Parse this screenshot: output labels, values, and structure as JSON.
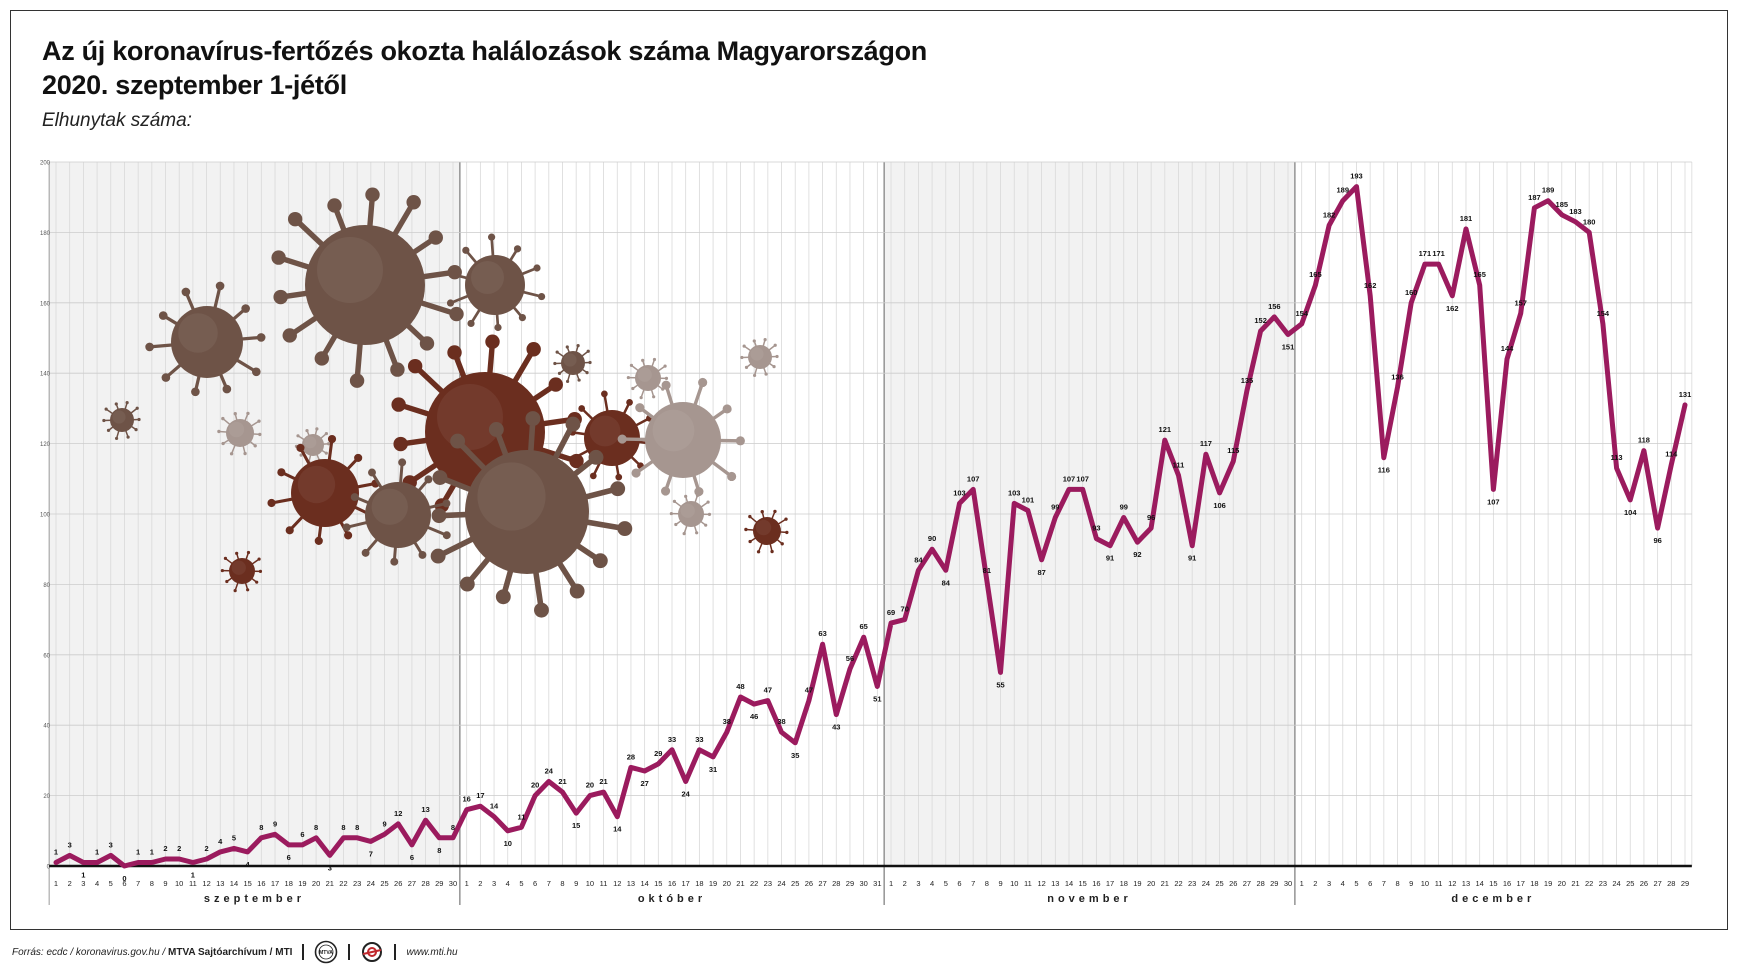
{
  "title_line1": "Az új koronavírus-fertőzés okozta halálozások száma Magyarországon",
  "title_line2": "2020. szeptember 1-jétől",
  "subtitle": "Elhunytak száma:",
  "footer": {
    "source_prefix": "Forrás: ecdc / koronavirus.gov.hu / ",
    "source_bold": "MTVA Sajtóarchívum / MTI",
    "url": "www.mti.hu",
    "logo1_text": "MTVA"
  },
  "colors": {
    "line": "#9b1b5e",
    "text": "#111111",
    "virus_dark": "#6b2e1f",
    "virus_mid": "#6e5347",
    "virus_light": "#a69690"
  },
  "chart_data": {
    "type": "line",
    "ylim": [
      0,
      200
    ],
    "yticks": [
      0,
      20,
      40,
      60,
      80,
      100,
      120,
      140,
      160,
      180,
      200
    ],
    "grid": true,
    "months": [
      {
        "name": "szeptember",
        "days": 30
      },
      {
        "name": "október",
        "days": 31
      },
      {
        "name": "november",
        "days": 30
      },
      {
        "name": "december",
        "days": 29
      }
    ],
    "series": [
      {
        "values": [
          1,
          3,
          1,
          1,
          3,
          0,
          1,
          1,
          2,
          2,
          1,
          2,
          4,
          5,
          4,
          8,
          9,
          6,
          6,
          8,
          3,
          8,
          8,
          7,
          9,
          12,
          6,
          13,
          8,
          8,
          16,
          17,
          14,
          10,
          11,
          20,
          24,
          21,
          15,
          20,
          21,
          14,
          28,
          27,
          29,
          33,
          24,
          33,
          31,
          38,
          48,
          46,
          47,
          38,
          35,
          47,
          63,
          43,
          56,
          65,
          51,
          69,
          70,
          84,
          90,
          84,
          103,
          107,
          81,
          55,
          103,
          101,
          87,
          99,
          107,
          107,
          93,
          91,
          99,
          92,
          96,
          121,
          111,
          91,
          117,
          106,
          115,
          135,
          152,
          156,
          151,
          154,
          165,
          182,
          189,
          193,
          162,
          116,
          136,
          160,
          171,
          171,
          162,
          181,
          165,
          107,
          144,
          157,
          187,
          189,
          185,
          183,
          180,
          154,
          113,
          104,
          118,
          96,
          114,
          131
        ]
      }
    ]
  },
  "viruses": [
    {
      "name": "virus-1",
      "color": "virus_mid"
    },
    {
      "name": "virus-2",
      "color": "virus_mid"
    },
    {
      "name": "virus-3",
      "color": "virus_mid"
    },
    {
      "name": "virus-4",
      "color": "virus_mid"
    },
    {
      "name": "virus-5",
      "color": "virus_mid"
    },
    {
      "name": "virus-6",
      "color": "virus_light"
    },
    {
      "name": "virus-7",
      "color": "virus_dark"
    },
    {
      "name": "virus-8",
      "color": "virus_light"
    },
    {
      "name": "virus-9",
      "color": "virus_dark"
    },
    {
      "name": "virus-10",
      "color": "virus_light"
    },
    {
      "name": "virus-11",
      "color": "virus_dark"
    },
    {
      "name": "virus-12",
      "color": "virus_light"
    },
    {
      "name": "virus-13",
      "color": "virus_mid"
    },
    {
      "name": "virus-14",
      "color": "virus_mid"
    },
    {
      "name": "virus-15",
      "color": "virus_light"
    },
    {
      "name": "virus-16",
      "color": "virus_light"
    },
    {
      "name": "virus-17",
      "color": "virus_dark"
    },
    {
      "name": "virus-18",
      "color": "virus_dark"
    },
    {
      "name": "virus-19",
      "color": "virus_dark"
    }
  ]
}
